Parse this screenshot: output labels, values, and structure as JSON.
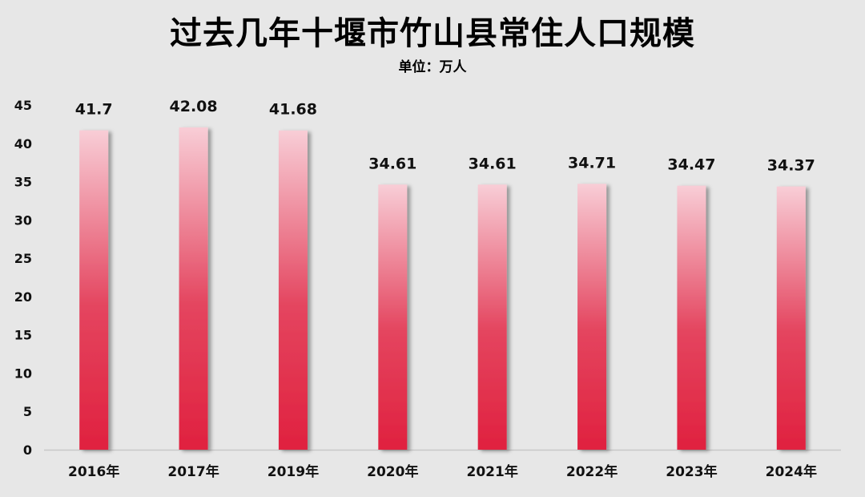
{
  "chart_data": {
    "type": "bar",
    "title": "过去几年十堰市竹山县常住人口规模",
    "subtitle": "单位：万人",
    "categories": [
      "2016年",
      "2017年",
      "2019年",
      "2020年",
      "2021年",
      "2022年",
      "2023年",
      "2024年"
    ],
    "values": [
      41.7,
      42.08,
      41.68,
      34.61,
      34.61,
      34.71,
      34.47,
      34.37
    ],
    "value_labels": [
      "41.7",
      "42.08",
      "41.68",
      "34.61",
      "34.61",
      "34.71",
      "34.47",
      "34.37"
    ],
    "ylim": [
      0,
      45
    ],
    "yticks": [
      "0",
      "5",
      "10",
      "15",
      "20",
      "25",
      "30",
      "35",
      "40",
      "45"
    ],
    "xlabel": "",
    "ylabel": "",
    "grid": false,
    "legend": "none",
    "colors": {
      "bar_top": "#f8cdd6",
      "bar_bottom": "#e0213f",
      "background": "#e7e7e7",
      "axis": "#c8c8c8"
    }
  }
}
